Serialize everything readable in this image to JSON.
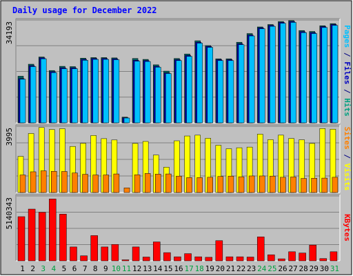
{
  "chart_data": [
    {
      "type": "bar",
      "title": "Daily usage for December 2022",
      "y_max_label": "34193",
      "legend_sequence": [
        {
          "text": "Pages",
          "color": "#00c0ff"
        },
        {
          "text": " / ",
          "color": "#000080"
        },
        {
          "text": "Files",
          "color": "#0000c0"
        },
        {
          "text": " / ",
          "color": "#000080"
        },
        {
          "text": "Hits",
          "color": "#00a080"
        }
      ],
      "ylim": [
        0,
        34193
      ],
      "series": [
        {
          "name": "Hits",
          "color": "#00a080",
          "values": [
            15500,
            19500,
            21900,
            17400,
            18800,
            18700,
            21500,
            21700,
            21700,
            21600,
            1900,
            21400,
            21100,
            19300,
            17200,
            21400,
            22900,
            27300,
            25700,
            21300,
            21300,
            26800,
            29700,
            31900,
            32700,
            33700,
            34000,
            30700,
            30400,
            32300,
            33000
          ]
        },
        {
          "name": "Files",
          "color": "#0000c0",
          "values": [
            14700,
            19000,
            21600,
            17000,
            18300,
            18300,
            21100,
            21400,
            21400,
            21300,
            1700,
            20800,
            20700,
            18800,
            16600,
            21000,
            22400,
            26800,
            25400,
            21000,
            21000,
            26300,
            29200,
            31600,
            32400,
            33400,
            33700,
            30300,
            30000,
            32000,
            32700
          ]
        },
        {
          "name": "Pages",
          "color": "#00c0ff",
          "values": [
            14500,
            18700,
            21300,
            16700,
            18000,
            18000,
            20800,
            21100,
            21100,
            21000,
            1600,
            20500,
            20400,
            18500,
            16400,
            20700,
            22100,
            26500,
            25100,
            20700,
            20700,
            26000,
            28900,
            31300,
            32100,
            33100,
            33400,
            30000,
            29700,
            31700,
            32400
          ]
        }
      ],
      "categories": [
        "1",
        "2",
        "3",
        "4",
        "5",
        "6",
        "7",
        "8",
        "9",
        "10",
        "11",
        "12",
        "13",
        "14",
        "15",
        "16",
        "17",
        "18",
        "19",
        "20",
        "21",
        "22",
        "23",
        "24",
        "25",
        "26",
        "27",
        "28",
        "29",
        "30",
        "31"
      ],
      "weekend_days": [
        "3",
        "4",
        "10",
        "11",
        "17",
        "18",
        "24",
        "25",
        "31"
      ]
    },
    {
      "type": "bar",
      "y_max_label": "3995",
      "legend_sequence": [
        {
          "text": "Sites",
          "color": "#ff8000"
        },
        {
          "text": " / ",
          "color": "#000080"
        },
        {
          "text": "Visits",
          "color": "#ffff00"
        }
      ],
      "ylim": [
        0,
        3995
      ],
      "series": [
        {
          "name": "Visits",
          "color": "#ffff00",
          "values": [
            2180,
            3560,
            3920,
            3800,
            3850,
            2780,
            2970,
            3440,
            3250,
            3170,
            0,
            2960,
            3080,
            2260,
            1530,
            3120,
            3410,
            3460,
            3270,
            2850,
            2640,
            2700,
            2740,
            3520,
            3190,
            3460,
            3260,
            3180,
            2960,
            3860,
            3820
          ]
        },
        {
          "name": "Sites",
          "color": "#ff8000",
          "values": [
            1060,
            1250,
            1310,
            1280,
            1270,
            1180,
            1100,
            1060,
            1060,
            1120,
            280,
            1070,
            1150,
            1110,
            1120,
            990,
            900,
            900,
            920,
            970,
            990,
            950,
            1000,
            1000,
            990,
            920,
            940,
            850,
            860,
            870,
            920
          ]
        }
      ],
      "categories": [
        "1",
        "2",
        "3",
        "4",
        "5",
        "6",
        "7",
        "8",
        "9",
        "10",
        "11",
        "12",
        "13",
        "14",
        "15",
        "16",
        "17",
        "18",
        "19",
        "20",
        "21",
        "22",
        "23",
        "24",
        "25",
        "26",
        "27",
        "28",
        "29",
        "30",
        "31"
      ]
    },
    {
      "type": "bar",
      "y_max_label": "5140343",
      "legend_sequence": [
        {
          "text": "KBytes",
          "color": "#ff0000"
        }
      ],
      "ylim": [
        0,
        5140343
      ],
      "series": [
        {
          "name": "KBytes",
          "color": "#ff0000",
          "values": [
            3500000,
            4100000,
            3850000,
            4900000,
            3700000,
            1100000,
            400000,
            2000000,
            1100000,
            1300000,
            80000,
            1100000,
            300000,
            1500000,
            650000,
            320000,
            570000,
            320000,
            280000,
            1600000,
            320000,
            320000,
            300000,
            1900000,
            480000,
            160000,
            720000,
            620000,
            1250000,
            180000,
            720000
          ]
        }
      ],
      "categories": [
        "1",
        "2",
        "3",
        "4",
        "5",
        "6",
        "7",
        "8",
        "9",
        "10",
        "11",
        "12",
        "13",
        "14",
        "15",
        "16",
        "17",
        "18",
        "19",
        "20",
        "21",
        "22",
        "23",
        "24",
        "25",
        "26",
        "27",
        "28",
        "29",
        "30",
        "31"
      ]
    }
  ]
}
